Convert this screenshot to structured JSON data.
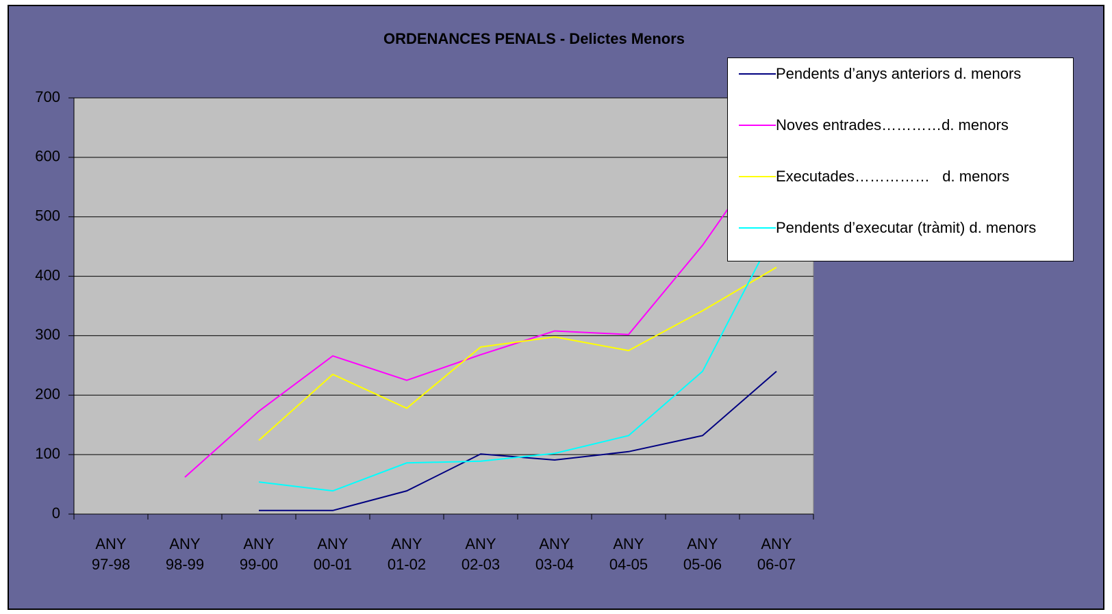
{
  "chart_data": {
    "type": "line",
    "title": "ORDENANCES PENALS - Delictes Menors",
    "categories": [
      "ANY 97-98",
      "ANY 98-99",
      "ANY 99-00",
      "ANY 00-01",
      "ANY 01-02",
      "ANY 02-03",
      "ANY 03-04",
      "ANY 04-05",
      "ANY 05-06",
      "ANY 06-07"
    ],
    "series": [
      {
        "name": "Pendents d’anys anteriors d. menors",
        "color": "#000080",
        "values": [
          null,
          null,
          6,
          6,
          39,
          101,
          91,
          105,
          132,
          240
        ]
      },
      {
        "name": "Noves entrades…………d. menors",
        "color": "#ff00ff",
        "values": [
          null,
          62,
          173,
          266,
          225,
          268,
          308,
          302,
          452,
          630
        ]
      },
      {
        "name": "Executades……………   d. menors",
        "color": "#ffff00",
        "values": [
          null,
          null,
          124,
          235,
          178,
          281,
          298,
          275,
          342,
          415
        ]
      },
      {
        "name": "Pendents d’executar (tràmit) d. menors",
        "color": "#00ffff",
        "values": [
          null,
          null,
          54,
          39,
          86,
          89,
          102,
          132,
          240,
          480
        ]
      }
    ],
    "ylim": [
      0,
      700
    ],
    "yticks": [
      0,
      100,
      200,
      300,
      400,
      500,
      600,
      700
    ],
    "grid": true,
    "legend": "top-right"
  }
}
